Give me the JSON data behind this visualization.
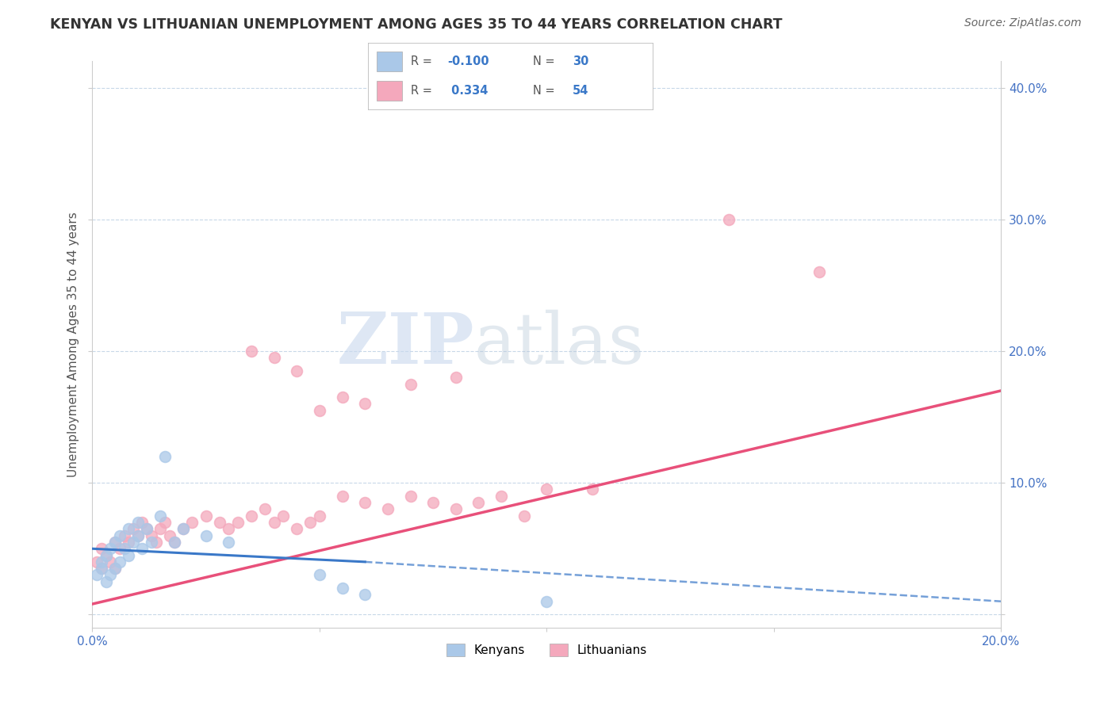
{
  "title": "KENYAN VS LITHUANIAN UNEMPLOYMENT AMONG AGES 35 TO 44 YEARS CORRELATION CHART",
  "source": "Source: ZipAtlas.com",
  "ylabel": "Unemployment Among Ages 35 to 44 years",
  "xlim": [
    0.0,
    0.2
  ],
  "ylim": [
    -0.01,
    0.42
  ],
  "yticks": [
    0.0,
    0.1,
    0.2,
    0.3,
    0.4
  ],
  "ytick_labels_right": [
    "",
    "10.0%",
    "20.0%",
    "30.0%",
    "40.0%"
  ],
  "xtick_labels": [
    "0.0%",
    "",
    "",
    "",
    "20.0%"
  ],
  "kenyan_R": -0.1,
  "kenyan_N": 30,
  "lithuanian_R": 0.334,
  "lithuanian_N": 54,
  "kenyan_color": "#aac8e8",
  "lithuanian_color": "#f4a8bc",
  "kenyan_line_color": "#3a78c8",
  "lithuanian_line_color": "#e8507a",
  "background_color": "#ffffff",
  "grid_color": "#c8d8e8",
  "watermark_zip": "ZIP",
  "watermark_atlas": "atlas",
  "kenyan_x": [
    0.001,
    0.002,
    0.002,
    0.003,
    0.003,
    0.004,
    0.004,
    0.005,
    0.005,
    0.006,
    0.006,
    0.007,
    0.008,
    0.008,
    0.009,
    0.01,
    0.01,
    0.011,
    0.012,
    0.013,
    0.015,
    0.016,
    0.018,
    0.02,
    0.025,
    0.03,
    0.05,
    0.055,
    0.06,
    0.1
  ],
  "kenyan_y": [
    0.03,
    0.035,
    0.04,
    0.025,
    0.045,
    0.03,
    0.05,
    0.035,
    0.055,
    0.04,
    0.06,
    0.05,
    0.045,
    0.065,
    0.055,
    0.06,
    0.07,
    0.05,
    0.065,
    0.055,
    0.075,
    0.12,
    0.055,
    0.065,
    0.06,
    0.055,
    0.03,
    0.02,
    0.015,
    0.01
  ],
  "lithuanian_x": [
    0.001,
    0.002,
    0.002,
    0.003,
    0.004,
    0.005,
    0.005,
    0.006,
    0.007,
    0.008,
    0.009,
    0.01,
    0.011,
    0.012,
    0.013,
    0.014,
    0.015,
    0.016,
    0.017,
    0.018,
    0.02,
    0.022,
    0.025,
    0.028,
    0.03,
    0.032,
    0.035,
    0.038,
    0.04,
    0.042,
    0.045,
    0.048,
    0.05,
    0.055,
    0.06,
    0.065,
    0.07,
    0.075,
    0.08,
    0.085,
    0.09,
    0.095,
    0.1,
    0.11,
    0.05,
    0.06,
    0.07,
    0.08,
    0.04,
    0.035,
    0.045,
    0.055,
    0.16,
    0.14
  ],
  "lithuanian_y": [
    0.04,
    0.035,
    0.05,
    0.045,
    0.04,
    0.035,
    0.055,
    0.05,
    0.06,
    0.055,
    0.065,
    0.06,
    0.07,
    0.065,
    0.06,
    0.055,
    0.065,
    0.07,
    0.06,
    0.055,
    0.065,
    0.07,
    0.075,
    0.07,
    0.065,
    0.07,
    0.075,
    0.08,
    0.07,
    0.075,
    0.065,
    0.07,
    0.075,
    0.09,
    0.085,
    0.08,
    0.09,
    0.085,
    0.08,
    0.085,
    0.09,
    0.075,
    0.095,
    0.095,
    0.155,
    0.16,
    0.175,
    0.18,
    0.195,
    0.2,
    0.185,
    0.165,
    0.26,
    0.3
  ]
}
